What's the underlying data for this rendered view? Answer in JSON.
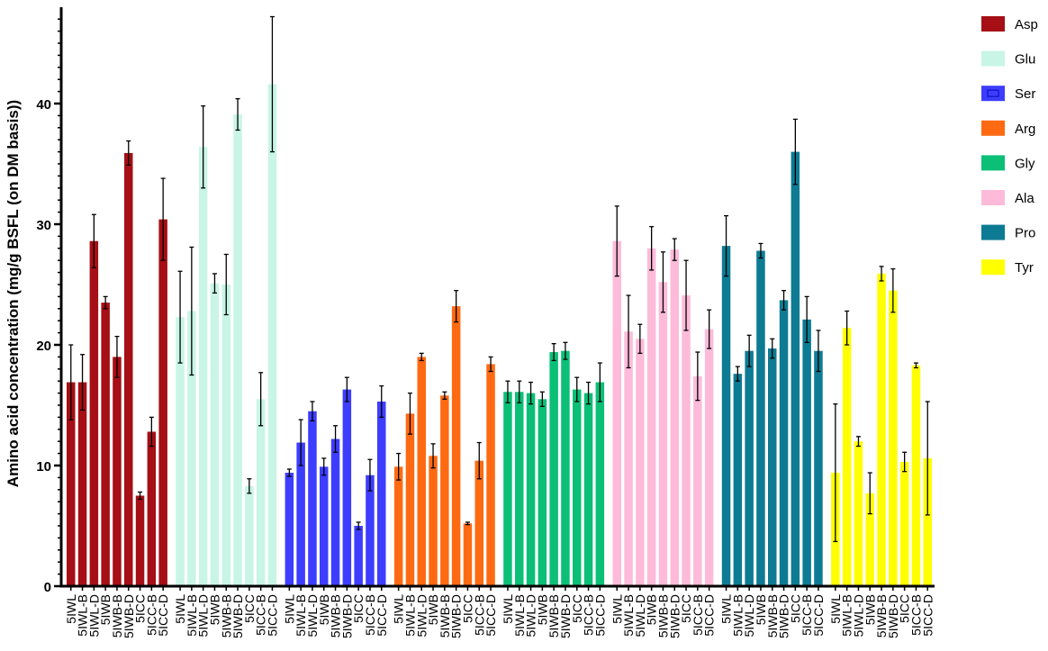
{
  "chart_data": {
    "type": "bar",
    "title": "",
    "xlabel": "",
    "ylabel": "Amino acid concentration (mg/g BSFL (on DM basis))",
    "ylim": [
      0,
      48
    ],
    "yticks": [
      0,
      10,
      20,
      30,
      40
    ],
    "legend_position": "top-right",
    "categories": [
      "5IWL",
      "5IWL-B",
      "5IWL-D",
      "5IWB",
      "5IWB-B",
      "5IWB-D",
      "5ICC",
      "5ICC-B",
      "5ICC-D"
    ],
    "series": [
      {
        "name": "Asp",
        "color": "#a50f15",
        "values": [
          16.9,
          16.9,
          28.6,
          23.5,
          19.0,
          35.9,
          7.5,
          12.8,
          30.4
        ],
        "errors": [
          3.1,
          2.3,
          2.2,
          0.5,
          1.7,
          1.0,
          0.3,
          1.2,
          3.4
        ]
      },
      {
        "name": "Glu",
        "color": "#c8f5e6",
        "values": [
          22.3,
          22.8,
          36.4,
          25.1,
          25.0,
          39.1,
          8.3,
          15.5,
          41.6
        ],
        "errors": [
          3.8,
          5.3,
          3.4,
          0.8,
          2.5,
          1.3,
          0.6,
          2.2,
          5.6
        ]
      },
      {
        "name": "Ser",
        "color": "#3d3dff",
        "values": [
          9.4,
          11.9,
          14.5,
          9.9,
          12.2,
          16.3,
          5.0,
          9.2,
          15.3
        ],
        "errors": [
          0.3,
          1.9,
          0.8,
          0.7,
          1.1,
          1.0,
          0.3,
          1.3,
          1.3
        ]
      },
      {
        "name": "Arg",
        "color": "#fe6a12",
        "values": [
          9.9,
          14.3,
          19.0,
          10.8,
          15.8,
          23.2,
          5.2,
          10.4,
          18.4
        ],
        "errors": [
          1.1,
          1.7,
          0.3,
          1.0,
          0.3,
          1.3,
          0.1,
          1.5,
          0.6
        ]
      },
      {
        "name": "Gly",
        "color": "#0bbf77",
        "values": [
          16.1,
          16.1,
          16.0,
          15.5,
          19.4,
          19.5,
          16.3,
          16.0,
          16.9
        ],
        "errors": [
          0.9,
          0.9,
          0.9,
          0.6,
          0.7,
          0.7,
          1.0,
          0.9,
          1.6
        ]
      },
      {
        "name": "Ala",
        "color": "#fdbbd9",
        "values": [
          28.6,
          21.1,
          20.5,
          28.0,
          25.2,
          27.9,
          24.1,
          17.4,
          21.3
        ],
        "errors": [
          2.9,
          3.0,
          1.2,
          1.8,
          2.5,
          0.9,
          2.9,
          2.0,
          1.6
        ]
      },
      {
        "name": "Pro",
        "color": "#0d7b93",
        "values": [
          28.2,
          17.6,
          19.5,
          27.8,
          19.7,
          23.7,
          36.0,
          22.1,
          19.5
        ],
        "errors": [
          2.5,
          0.6,
          1.3,
          0.6,
          0.8,
          0.8,
          2.7,
          1.9,
          1.7
        ]
      },
      {
        "name": "Tyr",
        "color": "#ffff00",
        "values": [
          9.4,
          21.4,
          12.0,
          7.7,
          25.9,
          24.5,
          10.3,
          18.3,
          10.6
        ],
        "errors": [
          5.7,
          1.4,
          0.4,
          1.7,
          0.6,
          1.8,
          0.8,
          0.2,
          4.7
        ]
      }
    ]
  }
}
